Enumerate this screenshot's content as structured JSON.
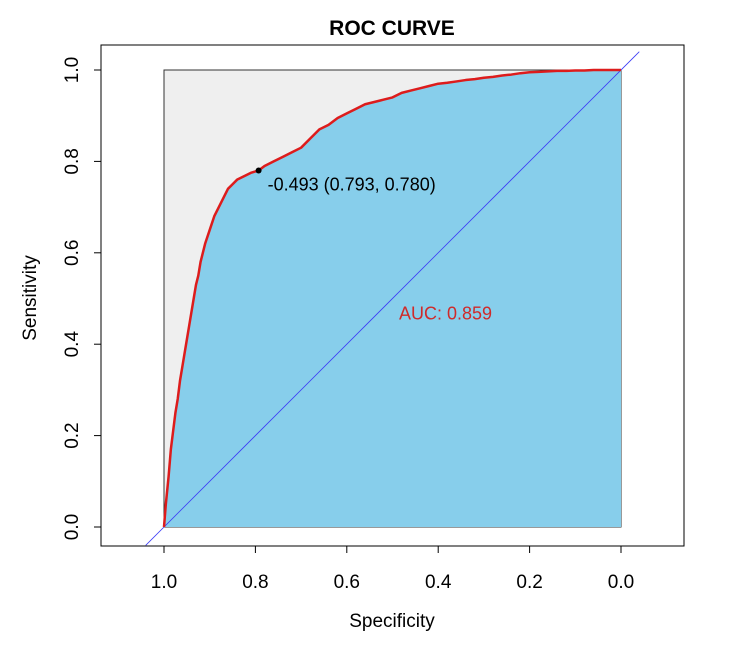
{
  "chart_data": {
    "type": "line",
    "title": "ROC CURVE",
    "xlabel": "Specificity",
    "ylabel": "Sensitivity",
    "xlim": [
      1.0,
      0.0
    ],
    "ylim": [
      0.0,
      1.0
    ],
    "x_reversed": true,
    "x_ticks": [
      "1.0",
      "0.8",
      "0.6",
      "0.4",
      "0.2",
      "0.0"
    ],
    "y_ticks": [
      "0.0",
      "0.2",
      "0.4",
      "0.6",
      "0.8",
      "1.0"
    ],
    "grid": false,
    "auc_label": "AUC: 0.859",
    "auc_polygon_fill": true,
    "max_auc_polygon": true,
    "threshold_point": {
      "label": "-0.493 (0.793, 0.780)",
      "specificity": 0.793,
      "sensitivity": 0.78
    },
    "series": [
      {
        "specificity": [
          1.0,
          0.996,
          0.99,
          0.985,
          0.98,
          0.975,
          0.97,
          0.965,
          0.96,
          0.955,
          0.95,
          0.945,
          0.94,
          0.935,
          0.93,
          0.925,
          0.92,
          0.915,
          0.91,
          0.9,
          0.89,
          0.88,
          0.87,
          0.86,
          0.85,
          0.84,
          0.83,
          0.82,
          0.81,
          0.8,
          0.793,
          0.78,
          0.76,
          0.74,
          0.72,
          0.7,
          0.68,
          0.66,
          0.64,
          0.62,
          0.6,
          0.58,
          0.56,
          0.54,
          0.52,
          0.5,
          0.48,
          0.46,
          0.44,
          0.42,
          0.4,
          0.38,
          0.36,
          0.34,
          0.32,
          0.3,
          0.28,
          0.26,
          0.24,
          0.22,
          0.2,
          0.18,
          0.16,
          0.14,
          0.12,
          0.1,
          0.08,
          0.06,
          0.04,
          0.02,
          0.0
        ],
        "sensitivity": [
          0.0,
          0.05,
          0.11,
          0.17,
          0.21,
          0.25,
          0.28,
          0.32,
          0.35,
          0.38,
          0.41,
          0.44,
          0.47,
          0.5,
          0.53,
          0.55,
          0.58,
          0.6,
          0.62,
          0.65,
          0.68,
          0.7,
          0.72,
          0.74,
          0.75,
          0.76,
          0.765,
          0.77,
          0.775,
          0.778,
          0.78,
          0.79,
          0.8,
          0.81,
          0.82,
          0.83,
          0.85,
          0.87,
          0.88,
          0.895,
          0.905,
          0.915,
          0.925,
          0.93,
          0.935,
          0.94,
          0.95,
          0.955,
          0.96,
          0.965,
          0.97,
          0.972,
          0.975,
          0.978,
          0.98,
          0.983,
          0.985,
          0.988,
          0.99,
          0.993,
          0.995,
          0.996,
          0.997,
          0.998,
          0.998,
          0.999,
          0.999,
          1.0,
          1.0,
          1.0,
          1.0
        ]
      }
    ],
    "colors": {
      "curve": "#dd1c1c",
      "auc_fill": "#87ceeb",
      "max_auc_fill": "#efefef",
      "diagonal": "#3c3cf5",
      "auc_text": "#cf2a2a",
      "point": "#000000"
    }
  }
}
